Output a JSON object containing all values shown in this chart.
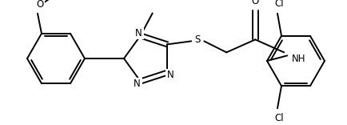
{
  "background_color": "#ffffff",
  "line_color": "#000000",
  "line_width": 1.4,
  "font_size": 8.5,
  "figsize": [
    4.34,
    1.56
  ],
  "dpi": 100,
  "xlim": [
    0,
    434
  ],
  "ylim": [
    0,
    156
  ]
}
